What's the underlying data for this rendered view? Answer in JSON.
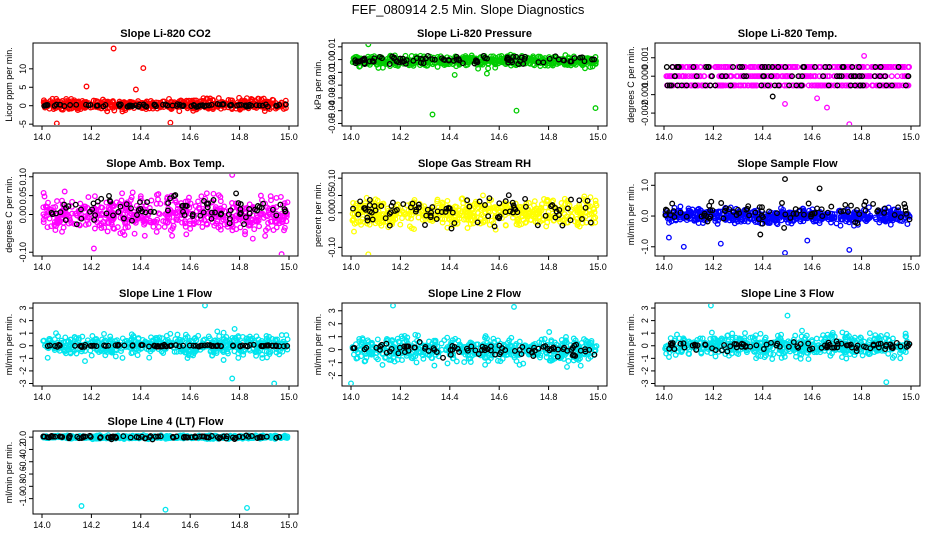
{
  "figure_title": "FEF_080914  2.5 Min. Slope Diagnostics",
  "chart_data": [
    {
      "type": "scatter",
      "title": "Slope Li-820 CO2",
      "ylabel": "Licor ppm per min.",
      "xlim": [
        14.0,
        15.0
      ],
      "ylim": [
        -5.5,
        17
      ],
      "xticks": [
        "14.0",
        "14.2",
        "14.4",
        "14.6",
        "14.8",
        "15.0"
      ],
      "yticks": [
        -5,
        0,
        5,
        10
      ],
      "ytick_labels": [
        "-5",
        "0",
        "5",
        "10"
      ],
      "series": [
        {
          "name": "all",
          "color": "#ff0000",
          "center": 0.3,
          "spread": 1.4,
          "outliers": [
            [
              14.29,
              15.5
            ],
            [
              14.41,
              10.2
            ],
            [
              14.18,
              5.2
            ],
            [
              14.06,
              -4.8
            ],
            [
              14.52,
              -4.6
            ],
            [
              14.38,
              4.4
            ]
          ]
        },
        {
          "name": "subset",
          "color": "#000000",
          "center": 0.1,
          "spread": 0.35,
          "outliers": []
        }
      ]
    },
    {
      "type": "scatter",
      "title": "Slope Li-820 Pressure",
      "ylabel": "kPa per min.",
      "xlim": [
        14.0,
        15.0
      ],
      "ylim": [
        -0.052,
        0.013
      ],
      "xticks": [
        "14.0",
        "14.2",
        "14.4",
        "14.6",
        "14.8",
        "15.0"
      ],
      "yticks": [
        0.01,
        0,
        -0.01,
        -0.02,
        -0.03,
        -0.04,
        -0.05
      ],
      "ytick_labels": [
        "0.01",
        "0.00",
        "-0.01",
        "-0.02",
        "-0.03",
        "-0.04",
        "-0.05"
      ],
      "series": [
        {
          "name": "all",
          "color": "#00cc00",
          "center": -0.001,
          "spread": 0.004,
          "outliers": [
            [
              14.33,
              -0.043
            ],
            [
              14.67,
              -0.04
            ],
            [
              14.99,
              -0.038
            ],
            [
              14.07,
              0.012
            ],
            [
              14.42,
              -0.012
            ],
            [
              14.55,
              -0.011
            ]
          ]
        },
        {
          "name": "subset",
          "color": "#000000",
          "center": 0.0,
          "spread": 0.0035,
          "outliers": []
        }
      ]
    },
    {
      "type": "scatter",
      "title": "Slope Li-820 Temp.",
      "ylabel": "degrees C per min.",
      "xlim": [
        14.0,
        15.0
      ],
      "ylim": [
        -0.0027,
        0.0018
      ],
      "xticks": [
        "14.0",
        "14.2",
        "14.4",
        "14.6",
        "14.8",
        "15.0"
      ],
      "yticks": [
        0.001,
        0,
        -0.001,
        -0.002
      ],
      "ytick_labels": [
        "0.001",
        "0.000",
        "-0.001",
        "-0.002"
      ],
      "series": [
        {
          "name": "all",
          "color": "#ff00ff",
          "center": 0,
          "spread": 0,
          "levels": [
            0.0005,
            0,
            -0.0005
          ],
          "outliers": [
            [
              14.62,
              -0.0012
            ],
            [
              14.75,
              -0.0026
            ],
            [
              14.66,
              -0.0017
            ],
            [
              14.49,
              -0.0015
            ],
            [
              14.81,
              0.0011
            ]
          ]
        },
        {
          "name": "subset",
          "color": "#000000",
          "center": 0,
          "spread": 0,
          "levels": [
            0.0005,
            0,
            -0.0005
          ],
          "outliers": [
            [
              14.44,
              -0.0011
            ]
          ]
        }
      ]
    },
    {
      "type": "scatter",
      "title": "Slope Amb. Box Temp.",
      "ylabel": "degrees C per min.",
      "xlim": [
        14.0,
        15.0
      ],
      "ylim": [
        -0.11,
        0.11
      ],
      "xticks": [
        "14.0",
        "14.2",
        "14.4",
        "14.6",
        "14.8",
        "15.0"
      ],
      "yticks": [
        -0.1,
        0,
        0.05,
        0.1
      ],
      "ytick_labels": [
        "-0.10",
        "0.00",
        "0.05",
        "0.10"
      ],
      "series": [
        {
          "name": "all",
          "color": "#ff00ff",
          "center": 0.0,
          "spread": 0.045,
          "outliers": [
            [
              14.77,
              0.105
            ],
            [
              14.97,
              -0.105
            ],
            [
              14.21,
              -0.09
            ]
          ]
        },
        {
          "name": "subset",
          "color": "#000000",
          "center": 0.01,
          "spread": 0.035,
          "outliers": []
        }
      ]
    },
    {
      "type": "scatter",
      "title": "Slope Gas Stream RH",
      "ylabel": "percent per min.",
      "xlim": [
        14.0,
        15.0
      ],
      "ylim": [
        -0.125,
        0.115
      ],
      "xticks": [
        "14.0",
        "14.2",
        "14.4",
        "14.6",
        "14.8",
        "15.0"
      ],
      "yticks": [
        -0.1,
        0,
        0.05,
        0.1
      ],
      "ytick_labels": [
        "-0.10",
        "0.00",
        "0.05",
        "0.10"
      ],
      "series": [
        {
          "name": "all",
          "color": "#ffff00",
          "center": 0.0,
          "spread": 0.04,
          "outliers": [
            [
              14.07,
              -0.12
            ]
          ]
        },
        {
          "name": "subset",
          "color": "#000000",
          "center": 0.0,
          "spread": 0.04,
          "outliers": []
        }
      ]
    },
    {
      "type": "scatter",
      "title": "Slope Sample Flow",
      "ylabel": "ml/min per min.",
      "xlim": [
        14.0,
        15.0
      ],
      "ylim": [
        -1.3,
        1.4
      ],
      "xticks": [
        "14.0",
        "14.2",
        "14.4",
        "14.6",
        "14.8",
        "15.0"
      ],
      "yticks": [
        -1,
        0,
        1
      ],
      "ytick_labels": [
        "-1.0",
        "0.0",
        "1.0"
      ],
      "series": [
        {
          "name": "all",
          "color": "#0000ff",
          "center": 0.0,
          "spread": 0.22,
          "outliers": [
            [
              14.08,
              -1.0
            ],
            [
              14.23,
              -0.9
            ],
            [
              14.58,
              -0.8
            ],
            [
              14.75,
              -1.1
            ],
            [
              14.49,
              -1.2
            ],
            [
              14.02,
              -0.7
            ]
          ]
        },
        {
          "name": "subset",
          "color": "#000000",
          "center": 0.1,
          "spread": 0.35,
          "outliers": [
            [
              14.49,
              1.2
            ],
            [
              14.63,
              0.9
            ],
            [
              14.39,
              -0.6
            ]
          ]
        }
      ]
    },
    {
      "type": "scatter",
      "title": "Slope Line 1 Flow",
      "ylabel": "ml/min per min.",
      "xlim": [
        14.0,
        15.0
      ],
      "ylim": [
        -3.2,
        3.4
      ],
      "xticks": [
        "14.0",
        "14.2",
        "14.4",
        "14.6",
        "14.8",
        "15.0"
      ],
      "yticks": [
        -3,
        -2,
        -1,
        0,
        1,
        2,
        3
      ],
      "ytick_labels": [
        "-3",
        "-2",
        "-1",
        "0",
        "1",
        "2",
        "3"
      ],
      "series": [
        {
          "name": "all",
          "color": "#00e5ee",
          "center": 0.0,
          "spread": 0.85,
          "outliers": [
            [
              14.66,
              3.2
            ],
            [
              14.77,
              -2.6
            ],
            [
              14.94,
              -3.0
            ]
          ]
        },
        {
          "name": "subset",
          "color": "#000000",
          "center": 0.0,
          "spread": 0.08,
          "outliers": []
        }
      ]
    },
    {
      "type": "scatter",
      "title": "Slope Line 2 Flow",
      "ylabel": "ml/min per min.",
      "xlim": [
        14.0,
        15.0
      ],
      "ylim": [
        -2.8,
        3.6
      ],
      "xticks": [
        "14.0",
        "14.2",
        "14.4",
        "14.6",
        "14.8",
        "15.0"
      ],
      "yticks": [
        -2,
        -1,
        0,
        1,
        2,
        3
      ],
      "ytick_labels": [
        "-2",
        "-1",
        "0",
        "1",
        "2",
        "3"
      ],
      "series": [
        {
          "name": "all",
          "color": "#00e5ee",
          "center": 0.0,
          "spread": 0.95,
          "outliers": [
            [
              14.17,
              3.4
            ],
            [
              14.66,
              3.3
            ],
            [
              14.0,
              -2.6
            ]
          ]
        },
        {
          "name": "subset",
          "color": "#000000",
          "center": 0.0,
          "spread": 0.45,
          "outliers": []
        }
      ]
    },
    {
      "type": "scatter",
      "title": "Slope Line 3 Flow",
      "ylabel": "ml/min per min.",
      "xlim": [
        14.0,
        15.0
      ],
      "ylim": [
        -3.2,
        3.4
      ],
      "xticks": [
        "14.0",
        "14.2",
        "14.4",
        "14.6",
        "14.8",
        "15.0"
      ],
      "yticks": [
        -3,
        -2,
        -1,
        0,
        1,
        2,
        3
      ],
      "ytick_labels": [
        "-3",
        "-2",
        "-1",
        "0",
        "1",
        "2",
        "3"
      ],
      "series": [
        {
          "name": "all",
          "color": "#00e5ee",
          "center": 0.0,
          "spread": 0.85,
          "outliers": [
            [
              14.19,
              3.2
            ],
            [
              14.9,
              -2.9
            ],
            [
              14.5,
              2.4
            ]
          ]
        },
        {
          "name": "subset",
          "color": "#000000",
          "center": 0.0,
          "spread": 0.35,
          "outliers": []
        }
      ]
    },
    {
      "type": "scatter",
      "title": "Slope Line 4 (LT) Flow",
      "ylabel": "ml/min per min.",
      "xlim": [
        14.0,
        15.0
      ],
      "ylim": [
        -1.25,
        0.1
      ],
      "xticks": [
        "14.0",
        "14.2",
        "14.4",
        "14.6",
        "14.8",
        "15.0"
      ],
      "yticks": [
        -1,
        -0.8,
        -0.6,
        -0.4,
        -0.2,
        0
      ],
      "ytick_labels": [
        "-1.0",
        "-0.8",
        "-0.6",
        "-0.4",
        "-0.2",
        "0.0"
      ],
      "series": [
        {
          "name": "all",
          "color": "#00e5ee",
          "center": 0.0,
          "spread": 0.025,
          "outliers": [
            [
              14.16,
              -1.12
            ],
            [
              14.5,
              -1.18
            ],
            [
              14.83,
              -1.15
            ]
          ]
        },
        {
          "name": "subset",
          "color": "#000000",
          "center": 0.0,
          "spread": 0.025,
          "outliers": []
        }
      ]
    }
  ]
}
